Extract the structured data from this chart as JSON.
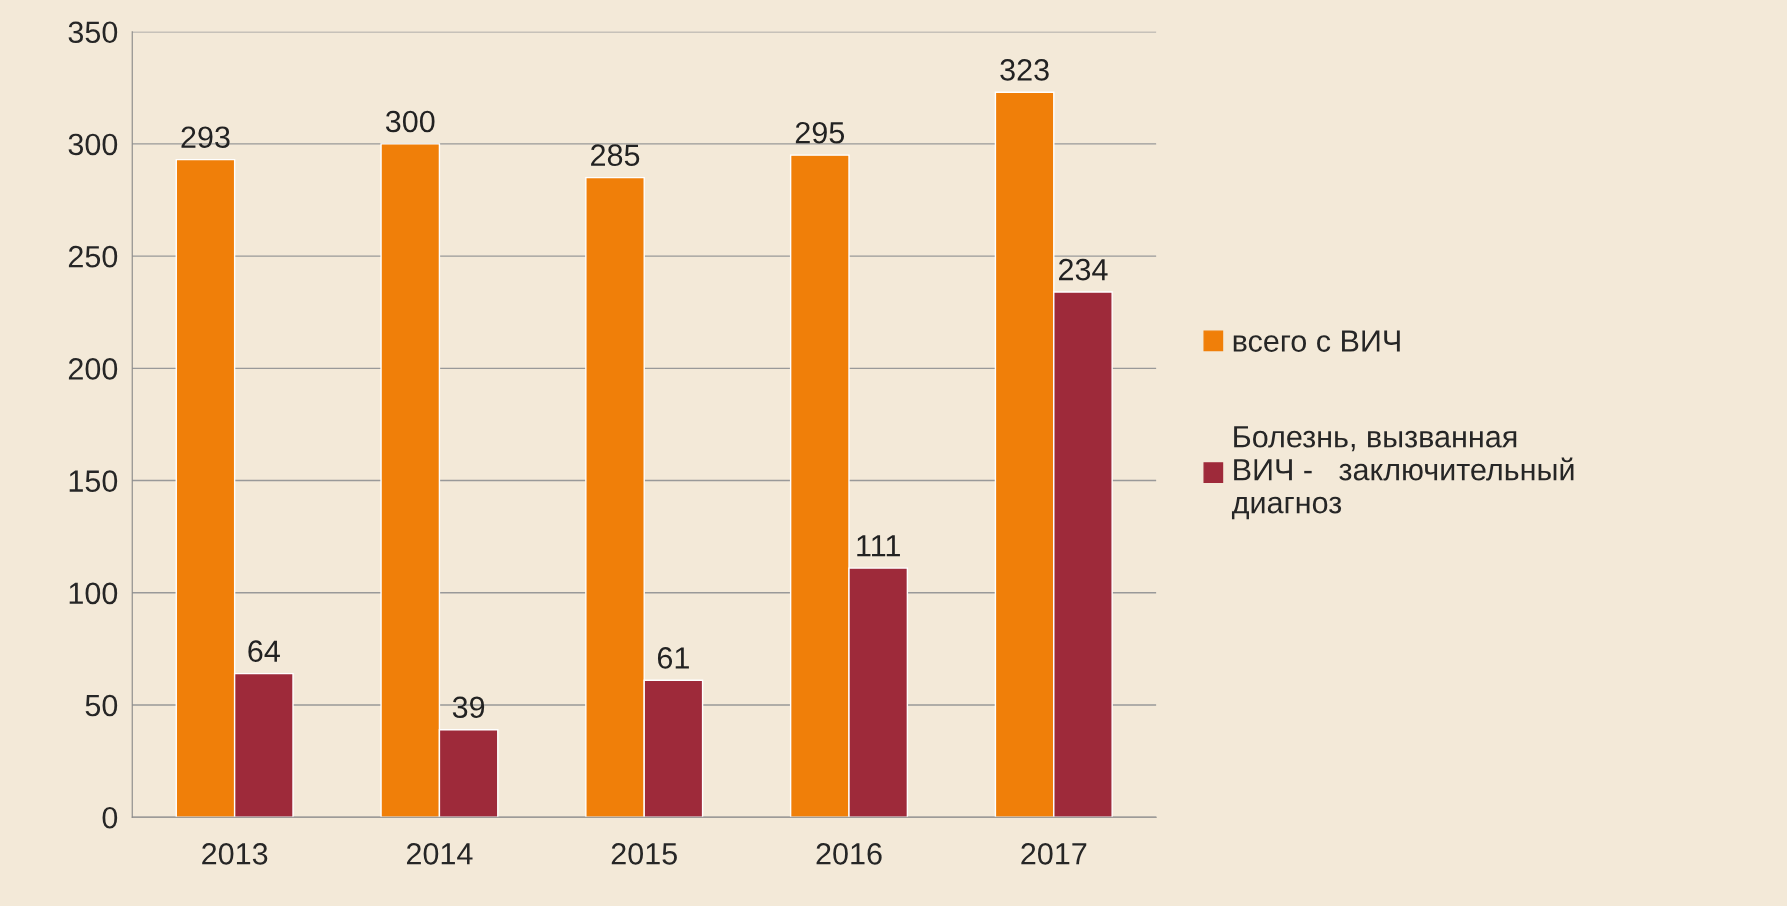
{
  "chart_data": {
    "type": "bar",
    "categories": [
      "2013",
      "2014",
      "2015",
      "2016",
      "2017"
    ],
    "series": [
      {
        "name": "всего с ВИЧ",
        "color": "#f07f09",
        "values": [
          293,
          300,
          285,
          295,
          323
        ]
      },
      {
        "name": "Болезнь, вызванная\nВИЧ -   заключительный\nдиагноз",
        "color": "#9e2a3a",
        "values": [
          64,
          39,
          61,
          111,
          234
        ]
      }
    ],
    "ylim": [
      0,
      350
    ],
    "yticks": [
      0,
      50,
      100,
      150,
      200,
      250,
      300,
      350
    ],
    "grid": "y",
    "legend": "right",
    "data_labels": true
  }
}
